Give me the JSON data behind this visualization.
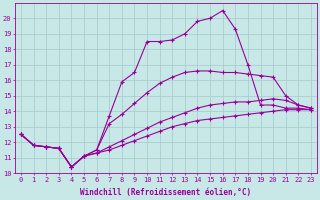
{
  "background_color": "#c8e8e8",
  "grid_color": "#a8cece",
  "line_color": "#990099",
  "xlabel": "Windchill (Refroidissement éolien,°C)",
  "xlim": [
    -0.5,
    23.5
  ],
  "ylim": [
    10,
    21
  ],
  "xticks": [
    0,
    1,
    2,
    3,
    4,
    5,
    6,
    7,
    8,
    9,
    10,
    11,
    12,
    13,
    14,
    15,
    16,
    17,
    18,
    19,
    20,
    21,
    22,
    23
  ],
  "yticks": [
    10,
    11,
    12,
    13,
    14,
    15,
    16,
    17,
    18,
    19,
    20
  ],
  "series": [
    {
      "x": [
        0,
        1,
        2,
        3,
        4,
        5,
        6,
        7,
        8,
        9,
        10,
        11,
        12,
        13,
        14,
        15,
        16,
        17,
        18,
        19,
        20,
        21,
        22,
        23
      ],
      "y": [
        12.5,
        11.8,
        11.7,
        11.6,
        10.4,
        11.1,
        11.3,
        11.5,
        11.8,
        12.1,
        12.4,
        12.7,
        13.0,
        13.2,
        13.4,
        13.5,
        13.6,
        13.7,
        13.8,
        13.9,
        14.0,
        14.1,
        14.1,
        14.1
      ]
    },
    {
      "x": [
        0,
        1,
        2,
        3,
        4,
        5,
        6,
        7,
        8,
        9,
        10,
        11,
        12,
        13,
        14,
        15,
        16,
        17,
        18,
        19,
        20,
        21,
        22,
        23
      ],
      "y": [
        12.5,
        11.8,
        11.7,
        11.6,
        10.4,
        11.1,
        11.3,
        11.7,
        12.1,
        12.5,
        12.9,
        13.3,
        13.6,
        13.9,
        14.2,
        14.4,
        14.5,
        14.6,
        14.6,
        14.7,
        14.8,
        14.7,
        14.4,
        14.2
      ]
    },
    {
      "x": [
        0,
        1,
        2,
        3,
        4,
        5,
        6,
        7,
        8,
        9,
        10,
        11,
        12,
        13,
        14,
        15,
        16,
        17,
        18,
        19,
        20,
        21,
        22,
        23
      ],
      "y": [
        12.5,
        11.8,
        11.7,
        11.6,
        10.4,
        11.1,
        11.5,
        13.2,
        13.8,
        14.5,
        15.2,
        15.8,
        16.2,
        16.5,
        16.6,
        16.6,
        16.5,
        16.5,
        16.4,
        16.3,
        16.2,
        15.0,
        14.4,
        14.2
      ]
    },
    {
      "x": [
        0,
        1,
        2,
        3,
        4,
        5,
        6,
        7,
        8,
        9,
        10,
        11,
        12,
        13,
        14,
        15,
        16,
        17,
        18,
        19,
        20,
        21,
        22,
        23
      ],
      "y": [
        12.5,
        11.8,
        11.7,
        11.6,
        10.4,
        11.1,
        11.5,
        13.7,
        15.9,
        16.5,
        18.5,
        18.5,
        18.6,
        19.0,
        19.8,
        20.0,
        20.5,
        19.3,
        17.0,
        14.4,
        14.4,
        14.2,
        14.2,
        14.1
      ]
    }
  ]
}
